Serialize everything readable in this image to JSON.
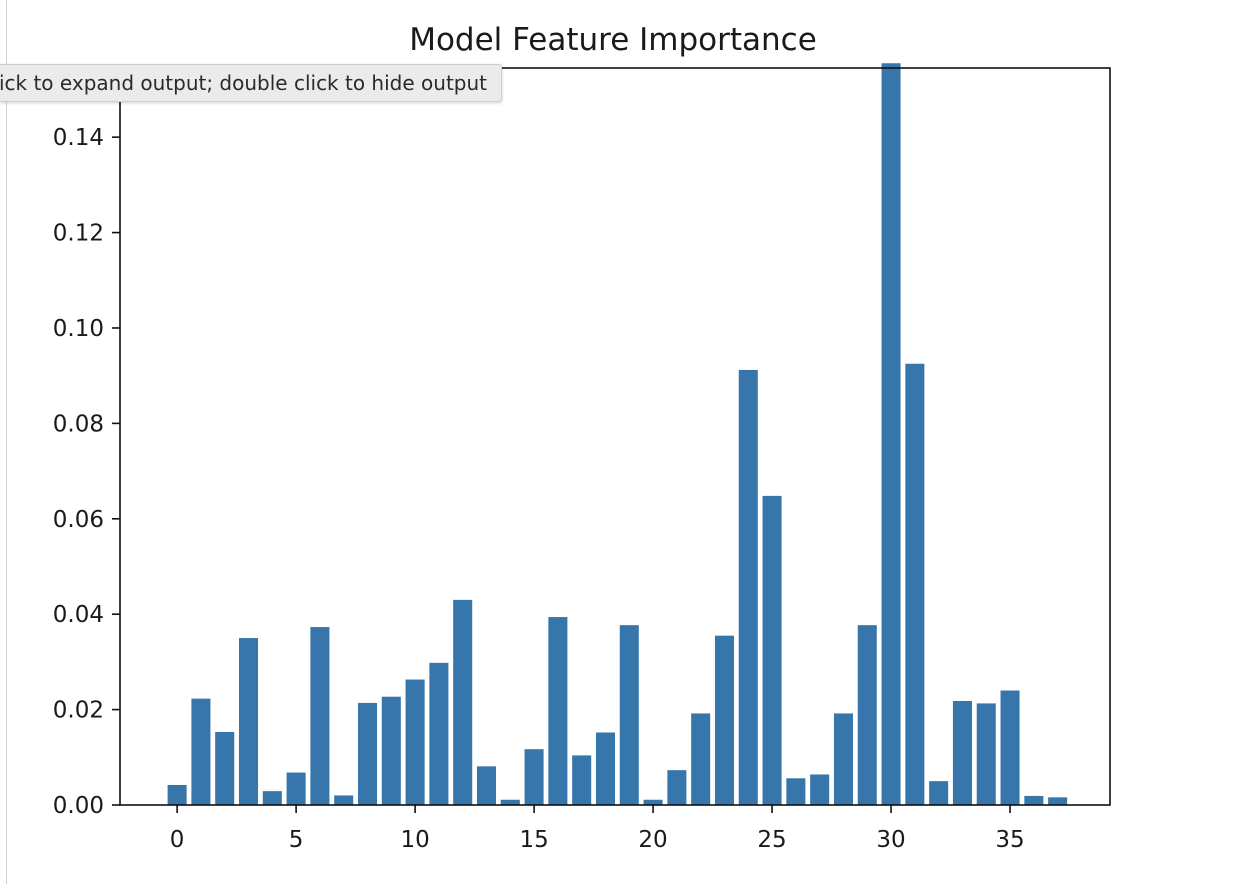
{
  "tooltip": {
    "text": "Click to expand output; double click to hide output"
  },
  "chart_data": {
    "type": "bar",
    "title": "Model Feature Importance",
    "xlabel": "",
    "ylabel": "",
    "color": "#3776ab",
    "xlim": [
      -2.4,
      39.2
    ],
    "ylim": [
      0,
      0.1545
    ],
    "xticks": [
      0,
      5,
      10,
      15,
      20,
      25,
      30,
      35
    ],
    "yticks": [
      0.0,
      0.02,
      0.04,
      0.06,
      0.08,
      0.1,
      0.12,
      0.14
    ],
    "ytick_labels": [
      "0.00",
      "0.02",
      "0.04",
      "0.06",
      "0.08",
      "0.10",
      "0.12",
      "0.14"
    ],
    "categories": [
      0,
      1,
      2,
      3,
      4,
      5,
      6,
      7,
      8,
      9,
      10,
      11,
      12,
      13,
      14,
      15,
      16,
      17,
      18,
      19,
      20,
      21,
      22,
      23,
      24,
      25,
      26,
      27,
      28,
      29,
      30,
      31,
      32,
      33,
      34,
      35,
      36,
      37
    ],
    "values": [
      0.0042,
      0.0223,
      0.0153,
      0.035,
      0.0029,
      0.0068,
      0.0373,
      0.002,
      0.0214,
      0.0227,
      0.0263,
      0.0298,
      0.043,
      0.0081,
      0.0011,
      0.0117,
      0.0394,
      0.0104,
      0.0152,
      0.0377,
      0.0011,
      0.0073,
      0.0192,
      0.0355,
      0.0912,
      0.0648,
      0.0056,
      0.0064,
      0.0192,
      0.0377,
      0.1555,
      0.0925,
      0.005,
      0.0218,
      0.0213,
      0.024,
      0.0019,
      0.0016
    ],
    "grid": false,
    "legend": "none"
  }
}
